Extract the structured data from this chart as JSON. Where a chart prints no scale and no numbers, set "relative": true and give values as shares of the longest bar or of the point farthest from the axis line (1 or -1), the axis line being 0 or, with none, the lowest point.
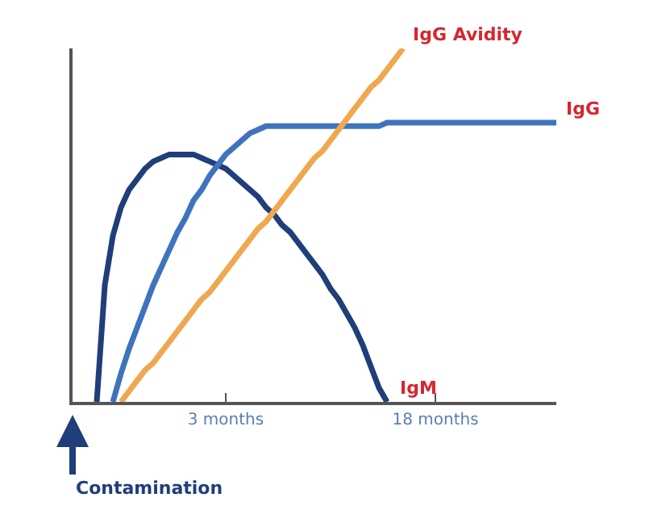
{
  "chart_data": {
    "type": "line",
    "relative": true,
    "legend": false,
    "marker": "none",
    "line_style": "solid",
    "tick_labels": "x",
    "categories": [
      null,
      null,
      null,
      null,
      null,
      null,
      null,
      null,
      null,
      null,
      null,
      null,
      null,
      null,
      null,
      null,
      null,
      null,
      null,
      "3 months",
      null,
      null,
      null,
      null,
      null,
      null,
      null,
      null,
      null,
      null,
      null,
      null,
      null,
      null,
      null,
      null,
      null,
      null,
      null,
      null,
      null,
      null,
      null,
      null,
      null,
      "18 months",
      null,
      null,
      null,
      null,
      null,
      null,
      null,
      null,
      null,
      null,
      null,
      null,
      null,
      null,
      null
    ],
    "series": [
      {
        "name": "IgM",
        "color": "#1f3e7a",
        "values": [
          null,
          null,
          null,
          0,
          0.33,
          0.47,
          0.55,
          0.6,
          0.63,
          0.66,
          0.68,
          0.69,
          0.7,
          0.7,
          0.7,
          0.7,
          0.69,
          0.68,
          0.67,
          0.66,
          0.64,
          0.62,
          0.6,
          0.58,
          0.55,
          0.53,
          0.5,
          0.48,
          0.45,
          0.42,
          0.39,
          0.36,
          0.32,
          0.29,
          0.25,
          0.21,
          0.16,
          0.1,
          0.04,
          0,
          null,
          null,
          null,
          null,
          null,
          null,
          null,
          null,
          null,
          null,
          null,
          null,
          null,
          null,
          null,
          null,
          null,
          null,
          null,
          null,
          null
        ]
      },
      {
        "name": "IgG",
        "color": "#3f74bd",
        "values": [
          null,
          null,
          null,
          null,
          null,
          0,
          0.08,
          0.15,
          0.21,
          0.27,
          0.33,
          0.38,
          0.43,
          0.48,
          0.52,
          0.57,
          0.6,
          0.64,
          0.67,
          0.7,
          0.72,
          0.74,
          0.76,
          0.77,
          0.78,
          0.78,
          0.78,
          0.78,
          0.78,
          0.78,
          0.78,
          0.78,
          0.78,
          0.78,
          0.78,
          0.78,
          0.78,
          0.78,
          0.78,
          0.79,
          0.79,
          0.79,
          0.79,
          0.79,
          0.79,
          0.79,
          0.79,
          0.79,
          0.79,
          0.79,
          0.79,
          0.79,
          0.79,
          0.79,
          0.79,
          0.79,
          0.79,
          0.79,
          0.79,
          0.79,
          0.79
        ]
      },
      {
        "name": "IgG Avidity",
        "color": "#f0a850",
        "values": [
          null,
          null,
          null,
          null,
          null,
          null,
          0,
          0.03,
          0.06,
          0.09,
          0.11,
          0.14,
          0.17,
          0.2,
          0.23,
          0.26,
          0.29,
          0.31,
          0.34,
          0.37,
          0.4,
          0.43,
          0.46,
          0.49,
          0.51,
          0.54,
          0.57,
          0.6,
          0.63,
          0.66,
          0.69,
          0.71,
          0.74,
          0.77,
          0.8,
          0.83,
          0.86,
          0.89,
          0.91,
          0.94,
          0.97,
          1,
          null,
          null,
          null,
          null,
          null,
          null,
          null,
          null,
          null,
          null,
          null,
          null,
          null,
          null,
          null,
          null,
          null,
          null,
          null
        ]
      }
    ],
    "annotations": [
      "Contamination"
    ]
  }
}
